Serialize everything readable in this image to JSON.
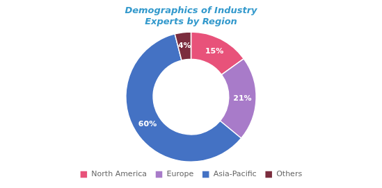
{
  "chart_data": {
    "type": "doughnut",
    "title": "Demographics of Industry\nExperts by Region",
    "categories": [
      "North America",
      "Europe",
      "Asia-Pacific",
      "Others"
    ],
    "values": [
      15,
      21,
      60,
      4
    ],
    "value_labels": [
      "15%",
      "21%",
      "60%",
      "4%"
    ],
    "colors": [
      "#E8527A",
      "#A87BC9",
      "#4472C4",
      "#7B2D3E"
    ],
    "data_labels": true,
    "legend": "bottom"
  }
}
